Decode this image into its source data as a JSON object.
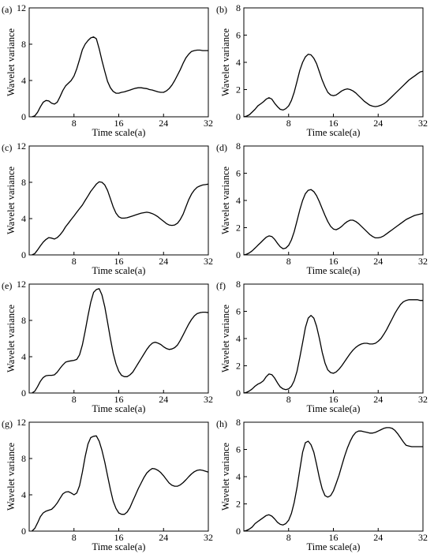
{
  "chart_data": [
    {
      "type": "line",
      "panel_label": "(a)",
      "xlabel": "Time scale(a)",
      "ylabel": "Wavelet variance",
      "xlim": [
        0,
        32
      ],
      "ylim": [
        0,
        12
      ],
      "xticks": [
        "8",
        "16",
        "24",
        "32"
      ],
      "yticks": [
        "0",
        "4",
        "8",
        "12"
      ],
      "x": [
        0.5,
        1,
        1.5,
        2,
        2.5,
        3,
        3.5,
        4,
        4.5,
        5,
        5.5,
        6,
        6.5,
        7,
        7.5,
        8,
        8.5,
        9,
        9.5,
        10,
        10.5,
        11,
        11.5,
        12,
        12.5,
        13,
        13.5,
        14,
        14.5,
        15,
        15.5,
        16,
        16.5,
        17,
        17.5,
        18,
        18.5,
        19,
        19.5,
        20,
        20.5,
        21,
        21.5,
        22,
        22.5,
        23,
        23.5,
        24,
        24.5,
        25,
        25.5,
        26,
        26.5,
        27,
        27.5,
        28,
        28.5,
        29,
        29.5,
        30,
        30.5,
        31,
        31.5,
        32
      ],
      "y": [
        0,
        0.1,
        0.5,
        1.1,
        1.6,
        1.8,
        1.75,
        1.5,
        1.4,
        1.6,
        2.2,
        2.9,
        3.4,
        3.7,
        4.0,
        4.5,
        5.3,
        6.3,
        7.4,
        8.0,
        8.4,
        8.7,
        8.8,
        8.6,
        7.5,
        6.2,
        5.0,
        3.9,
        3.2,
        2.8,
        2.6,
        2.6,
        2.7,
        2.75,
        2.85,
        2.95,
        3.05,
        3.15,
        3.2,
        3.2,
        3.15,
        3.1,
        3.0,
        2.95,
        2.85,
        2.75,
        2.7,
        2.7,
        2.85,
        3.1,
        3.5,
        4.0,
        4.6,
        5.2,
        5.9,
        6.5,
        6.9,
        7.2,
        7.3,
        7.35,
        7.35,
        7.3,
        7.3,
        7.3
      ]
    },
    {
      "type": "line",
      "panel_label": "(b)",
      "xlabel": "Time scale(a)",
      "ylabel": "Wavelet variance",
      "xlim": [
        0,
        32
      ],
      "ylim": [
        0,
        8
      ],
      "xticks": [
        "8",
        "16",
        "24",
        "32"
      ],
      "yticks": [
        "0",
        "2",
        "4",
        "6",
        "8"
      ],
      "x": [
        0,
        0.5,
        1,
        1.5,
        2,
        2.5,
        3,
        3.5,
        4,
        4.5,
        5,
        5.5,
        6,
        6.5,
        7,
        7.5,
        8,
        8.5,
        9,
        9.5,
        10,
        10.5,
        11,
        11.5,
        12,
        12.5,
        13,
        13.5,
        14,
        14.5,
        15,
        15.5,
        16,
        16.5,
        17,
        17.5,
        18,
        18.5,
        19,
        19.5,
        20,
        20.5,
        21,
        21.5,
        22,
        22.5,
        23,
        23.5,
        24,
        24.5,
        25,
        25.5,
        26,
        26.5,
        27,
        27.5,
        28,
        28.5,
        29,
        29.5,
        30,
        30.5,
        31,
        31.5,
        32
      ],
      "y": [
        0,
        0.05,
        0.15,
        0.35,
        0.55,
        0.8,
        0.95,
        1.1,
        1.3,
        1.4,
        1.3,
        1.0,
        0.75,
        0.55,
        0.5,
        0.6,
        0.8,
        1.2,
        1.8,
        2.6,
        3.4,
        4.0,
        4.4,
        4.6,
        4.55,
        4.3,
        3.9,
        3.3,
        2.7,
        2.2,
        1.8,
        1.6,
        1.55,
        1.6,
        1.75,
        1.9,
        2.0,
        2.05,
        2.0,
        1.9,
        1.75,
        1.55,
        1.35,
        1.15,
        1.0,
        0.85,
        0.78,
        0.75,
        0.78,
        0.85,
        0.95,
        1.1,
        1.3,
        1.5,
        1.7,
        1.9,
        2.1,
        2.3,
        2.5,
        2.7,
        2.85,
        3.0,
        3.15,
        3.3,
        3.35
      ]
    },
    {
      "type": "line",
      "panel_label": "(c)",
      "xlabel": "Time scale(a)",
      "ylabel": "Wavelet variance",
      "xlim": [
        0,
        32
      ],
      "ylim": [
        0,
        12
      ],
      "xticks": [
        "8",
        "16",
        "24",
        "32"
      ],
      "yticks": [
        "0",
        "4",
        "8",
        "12"
      ],
      "x": [
        0.5,
        1,
        1.5,
        2,
        2.5,
        3,
        3.5,
        4,
        4.5,
        5,
        5.5,
        6,
        6.5,
        7,
        7.5,
        8,
        8.5,
        9,
        9.5,
        10,
        10.5,
        11,
        11.5,
        12,
        12.5,
        13,
        13.5,
        14,
        14.5,
        15,
        15.5,
        16,
        16.5,
        17,
        17.5,
        18,
        18.5,
        19,
        19.5,
        20,
        20.5,
        21,
        21.5,
        22,
        22.5,
        23,
        23.5,
        24,
        24.5,
        25,
        25.5,
        26,
        26.5,
        27,
        27.5,
        28,
        28.5,
        29,
        29.5,
        30,
        30.5,
        31,
        31.5,
        32
      ],
      "y": [
        0,
        0.15,
        0.55,
        1.0,
        1.4,
        1.7,
        1.9,
        1.85,
        1.75,
        1.9,
        2.2,
        2.6,
        3.1,
        3.5,
        3.9,
        4.3,
        4.7,
        5.1,
        5.5,
        6.0,
        6.5,
        7.0,
        7.4,
        7.8,
        8.05,
        8.0,
        7.7,
        7.1,
        6.2,
        5.3,
        4.6,
        4.2,
        4.05,
        4.05,
        4.1,
        4.2,
        4.3,
        4.4,
        4.5,
        4.6,
        4.65,
        4.7,
        4.65,
        4.55,
        4.4,
        4.2,
        3.95,
        3.7,
        3.45,
        3.3,
        3.25,
        3.3,
        3.5,
        3.9,
        4.5,
        5.3,
        6.1,
        6.7,
        7.15,
        7.45,
        7.6,
        7.7,
        7.75,
        7.8
      ]
    },
    {
      "type": "line",
      "panel_label": "(d)",
      "xlabel": "Time scale(a)",
      "ylabel": "Wavelet variance",
      "xlim": [
        0,
        32
      ],
      "ylim": [
        0,
        8
      ],
      "xticks": [
        "8",
        "16",
        "24",
        "32"
      ],
      "yticks": [
        "0",
        "2",
        "4",
        "6",
        "8"
      ],
      "x": [
        0,
        0.5,
        1,
        1.5,
        2,
        2.5,
        3,
        3.5,
        4,
        4.5,
        5,
        5.5,
        6,
        6.5,
        7,
        7.5,
        8,
        8.5,
        9,
        9.5,
        10,
        10.5,
        11,
        11.5,
        12,
        12.5,
        13,
        13.5,
        14,
        14.5,
        15,
        15.5,
        16,
        16.5,
        17,
        17.5,
        18,
        18.5,
        19,
        19.5,
        20,
        20.5,
        21,
        21.5,
        22,
        22.5,
        23,
        23.5,
        24,
        24.5,
        25,
        25.5,
        26,
        26.5,
        27,
        27.5,
        28,
        28.5,
        29,
        29.5,
        30,
        30.5,
        31,
        31.5,
        32
      ],
      "y": [
        0,
        0.05,
        0.15,
        0.3,
        0.5,
        0.7,
        0.9,
        1.1,
        1.3,
        1.4,
        1.35,
        1.15,
        0.85,
        0.6,
        0.45,
        0.5,
        0.7,
        1.1,
        1.7,
        2.5,
        3.3,
        4.0,
        4.5,
        4.75,
        4.8,
        4.65,
        4.35,
        3.9,
        3.4,
        2.9,
        2.45,
        2.1,
        1.9,
        1.85,
        1.95,
        2.1,
        2.3,
        2.45,
        2.55,
        2.55,
        2.45,
        2.3,
        2.1,
        1.9,
        1.7,
        1.5,
        1.35,
        1.25,
        1.25,
        1.3,
        1.4,
        1.55,
        1.7,
        1.85,
        2.0,
        2.15,
        2.3,
        2.45,
        2.6,
        2.7,
        2.8,
        2.9,
        2.95,
        3.0,
        3.05
      ]
    },
    {
      "type": "line",
      "panel_label": "(e)",
      "xlabel": "Time scale(a)",
      "ylabel": "Wavelet variance",
      "xlim": [
        0,
        32
      ],
      "ylim": [
        0,
        12
      ],
      "xticks": [
        "8",
        "16",
        "24",
        "32"
      ],
      "yticks": [
        "0",
        "4",
        "8",
        "12"
      ],
      "x": [
        0.5,
        1,
        1.5,
        2,
        2.5,
        3,
        3.5,
        4,
        4.5,
        5,
        5.5,
        6,
        6.5,
        7,
        7.5,
        8,
        8.5,
        9,
        9.5,
        10,
        10.5,
        11,
        11.5,
        12,
        12.5,
        13,
        13.5,
        14,
        14.5,
        15,
        15.5,
        16,
        16.5,
        17,
        17.5,
        18,
        18.5,
        19,
        19.5,
        20,
        20.5,
        21,
        21.5,
        22,
        22.5,
        23,
        23.5,
        24,
        24.5,
        25,
        25.5,
        26,
        26.5,
        27,
        27.5,
        28,
        28.5,
        29,
        29.5,
        30,
        30.5,
        31,
        31.5,
        32
      ],
      "y": [
        0,
        0.2,
        0.7,
        1.3,
        1.7,
        1.9,
        1.95,
        1.95,
        2.0,
        2.3,
        2.7,
        3.1,
        3.4,
        3.5,
        3.55,
        3.6,
        3.7,
        4.2,
        5.3,
        6.8,
        8.5,
        10.0,
        11.1,
        11.4,
        11.5,
        10.8,
        9.5,
        7.8,
        6.0,
        4.4,
        3.2,
        2.4,
        1.95,
        1.8,
        1.8,
        2.0,
        2.3,
        2.8,
        3.3,
        3.8,
        4.3,
        4.8,
        5.2,
        5.5,
        5.6,
        5.5,
        5.35,
        5.1,
        4.9,
        4.8,
        4.85,
        5.0,
        5.3,
        5.8,
        6.4,
        7.0,
        7.6,
        8.1,
        8.5,
        8.75,
        8.85,
        8.9,
        8.9,
        8.85
      ]
    },
    {
      "type": "line",
      "panel_label": "(f)",
      "xlabel": "Time scale(a)",
      "ylabel": "Wavelet variance",
      "xlim": [
        0,
        32
      ],
      "ylim": [
        0,
        8
      ],
      "xticks": [
        "8",
        "16",
        "24",
        "32"
      ],
      "yticks": [
        "0",
        "2",
        "4",
        "6",
        "8"
      ],
      "x": [
        0,
        0.5,
        1,
        1.5,
        2,
        2.5,
        3,
        3.5,
        4,
        4.5,
        5,
        5.5,
        6,
        6.5,
        7,
        7.5,
        8,
        8.5,
        9,
        9.5,
        10,
        10.5,
        11,
        11.5,
        12,
        12.5,
        13,
        13.5,
        14,
        14.5,
        15,
        15.5,
        16,
        16.5,
        17,
        17.5,
        18,
        18.5,
        19,
        19.5,
        20,
        20.5,
        21,
        21.5,
        22,
        22.5,
        23,
        23.5,
        24,
        24.5,
        25,
        25.5,
        26,
        26.5,
        27,
        27.5,
        28,
        28.5,
        29,
        29.5,
        30,
        30.5,
        31,
        31.5,
        32
      ],
      "y": [
        0,
        0.05,
        0.15,
        0.3,
        0.5,
        0.65,
        0.75,
        0.9,
        1.2,
        1.4,
        1.35,
        1.1,
        0.75,
        0.45,
        0.3,
        0.25,
        0.3,
        0.5,
        0.9,
        1.6,
        2.6,
        3.7,
        4.8,
        5.5,
        5.7,
        5.5,
        4.9,
        4.0,
        3.0,
        2.2,
        1.7,
        1.5,
        1.45,
        1.55,
        1.75,
        2.0,
        2.3,
        2.6,
        2.9,
        3.15,
        3.35,
        3.5,
        3.6,
        3.65,
        3.65,
        3.6,
        3.6,
        3.65,
        3.8,
        4.0,
        4.3,
        4.65,
        5.05,
        5.45,
        5.85,
        6.2,
        6.5,
        6.7,
        6.8,
        6.85,
        6.85,
        6.85,
        6.85,
        6.8,
        6.8
      ]
    },
    {
      "type": "line",
      "panel_label": "(g)",
      "xlabel": "Time scale(a)",
      "ylabel": "Wavelet variance",
      "xlim": [
        0,
        32
      ],
      "ylim": [
        0,
        12
      ],
      "xticks": [
        "8",
        "16",
        "24",
        "32"
      ],
      "yticks": [
        "0",
        "4",
        "8",
        "12"
      ],
      "x": [
        0.5,
        1,
        1.5,
        2,
        2.5,
        3,
        3.5,
        4,
        4.5,
        5,
        5.5,
        6,
        6.5,
        7,
        7.5,
        8,
        8.5,
        9,
        9.5,
        10,
        10.5,
        11,
        11.5,
        12,
        12.5,
        13,
        13.5,
        14,
        14.5,
        15,
        15.5,
        16,
        16.5,
        17,
        17.5,
        18,
        18.5,
        19,
        19.5,
        20,
        20.5,
        21,
        21.5,
        22,
        22.5,
        23,
        23.5,
        24,
        24.5,
        25,
        25.5,
        26,
        26.5,
        27,
        27.5,
        28,
        28.5,
        29,
        29.5,
        30,
        30.5,
        31,
        31.5,
        32
      ],
      "y": [
        0,
        0.3,
        0.9,
        1.6,
        2.0,
        2.2,
        2.3,
        2.4,
        2.7,
        3.1,
        3.6,
        4.1,
        4.3,
        4.35,
        4.2,
        4.0,
        4.2,
        5.0,
        6.5,
        8.2,
        9.6,
        10.3,
        10.45,
        10.5,
        9.9,
        8.9,
        7.6,
        6.1,
        4.6,
        3.3,
        2.5,
        2.0,
        1.85,
        1.85,
        2.1,
        2.6,
        3.3,
        4.0,
        4.7,
        5.3,
        5.9,
        6.4,
        6.7,
        6.9,
        6.85,
        6.7,
        6.45,
        6.1,
        5.7,
        5.3,
        5.05,
        4.95,
        4.95,
        5.1,
        5.35,
        5.65,
        6.0,
        6.3,
        6.55,
        6.7,
        6.75,
        6.7,
        6.6,
        6.5
      ]
    },
    {
      "type": "line",
      "panel_label": "(h)",
      "xlabel": "Time scale(a)",
      "ylabel": "Wavelet variance",
      "xlim": [
        0,
        32
      ],
      "ylim": [
        0,
        8
      ],
      "xticks": [
        "8",
        "16",
        "24",
        "32"
      ],
      "yticks": [
        "0",
        "2",
        "4",
        "6",
        "8"
      ],
      "x": [
        0,
        0.5,
        1,
        1.5,
        2,
        2.5,
        3,
        3.5,
        4,
        4.5,
        5,
        5.5,
        6,
        6.5,
        7,
        7.5,
        8,
        8.5,
        9,
        9.5,
        10,
        10.5,
        11,
        11.5,
        12,
        12.5,
        13,
        13.5,
        14,
        14.5,
        15,
        15.5,
        16,
        16.5,
        17,
        17.5,
        18,
        18.5,
        19,
        19.5,
        20,
        20.5,
        21,
        21.5,
        22,
        22.5,
        23,
        23.5,
        24,
        24.5,
        25,
        25.5,
        26,
        26.5,
        27,
        27.5,
        28,
        28.5,
        29,
        29.5,
        30,
        30.5,
        31,
        31.5,
        32
      ],
      "y": [
        0,
        0.05,
        0.15,
        0.3,
        0.55,
        0.7,
        0.85,
        1.0,
        1.15,
        1.2,
        1.1,
        0.9,
        0.65,
        0.5,
        0.45,
        0.55,
        0.8,
        1.3,
        2.1,
        3.2,
        4.5,
        5.8,
        6.5,
        6.6,
        6.35,
        5.8,
        4.9,
        3.9,
        3.1,
        2.6,
        2.5,
        2.6,
        2.95,
        3.5,
        4.1,
        4.8,
        5.5,
        6.1,
        6.6,
        7.0,
        7.25,
        7.35,
        7.35,
        7.3,
        7.25,
        7.2,
        7.2,
        7.25,
        7.35,
        7.45,
        7.55,
        7.6,
        7.6,
        7.55,
        7.4,
        7.15,
        6.85,
        6.55,
        6.3,
        6.25,
        6.2,
        6.2,
        6.2,
        6.2,
        6.2
      ]
    }
  ]
}
